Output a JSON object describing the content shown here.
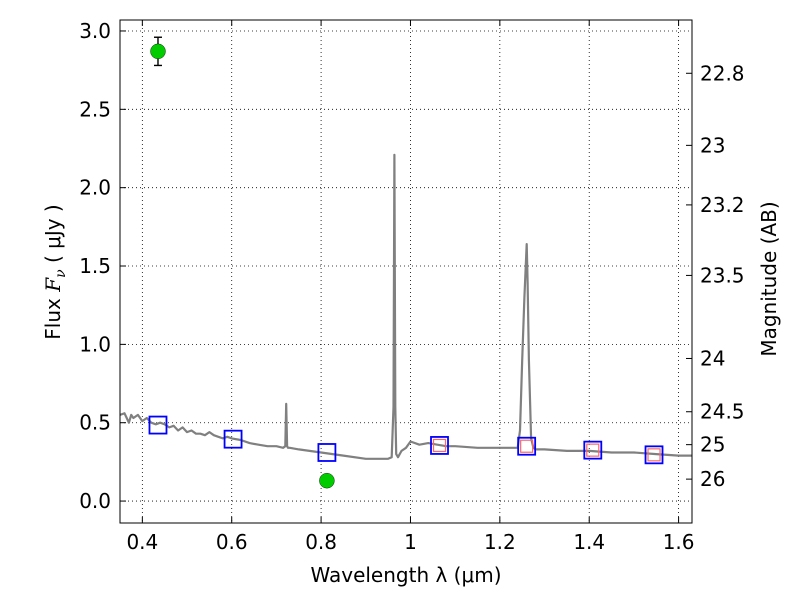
{
  "chart_data": {
    "type": "line",
    "xlabel": "Wavelength  λ (μm)",
    "ylabel": "Flux  F_ν  ( μJy )",
    "ylabel_parts": {
      "pre": "Flux  ",
      "f": "F",
      "nu": "ν",
      "post": "  ( μJy )"
    },
    "y2label": "Magnitude (AB)",
    "xlim": [
      0.35,
      1.63
    ],
    "ylim": [
      -0.14,
      3.07
    ],
    "grid": true,
    "x_ticks": [
      {
        "value": 0.4,
        "label": "0.4"
      },
      {
        "value": 0.6,
        "label": "0.6"
      },
      {
        "value": 0.8,
        "label": "0.8"
      },
      {
        "value": 1.0,
        "label": "1"
      },
      {
        "value": 1.2,
        "label": "1.2"
      },
      {
        "value": 1.4,
        "label": "1.4"
      },
      {
        "value": 1.6,
        "label": "1.6"
      }
    ],
    "y_ticks": [
      {
        "value": 0.0,
        "label": "0.0"
      },
      {
        "value": 0.5,
        "label": "0.5"
      },
      {
        "value": 1.0,
        "label": "1.0"
      },
      {
        "value": 1.5,
        "label": "1.5"
      },
      {
        "value": 2.0,
        "label": "2.0"
      },
      {
        "value": 2.5,
        "label": "2.5"
      },
      {
        "value": 3.0,
        "label": "3.0"
      }
    ],
    "y2_ticks": [
      {
        "flux": 2.73,
        "label": "22.8"
      },
      {
        "flux": 2.27,
        "label": "23"
      },
      {
        "flux": 1.89,
        "label": "23.2"
      },
      {
        "flux": 1.44,
        "label": "23.5"
      },
      {
        "flux": 0.91,
        "label": "24"
      },
      {
        "flux": 0.57,
        "label": "24.5"
      },
      {
        "flux": 0.36,
        "label": "25"
      },
      {
        "flux": 0.14,
        "label": "26"
      }
    ],
    "series": [
      {
        "type": "line",
        "color": "#808080",
        "x": [
          0.35,
          0.36,
          0.37,
          0.375,
          0.38,
          0.39,
          0.4,
          0.41,
          0.42,
          0.43,
          0.44,
          0.45,
          0.46,
          0.47,
          0.48,
          0.49,
          0.5,
          0.51,
          0.52,
          0.53,
          0.54,
          0.55,
          0.56,
          0.57,
          0.58,
          0.59,
          0.6,
          0.62,
          0.64,
          0.66,
          0.68,
          0.7,
          0.715,
          0.72,
          0.722,
          0.724,
          0.726,
          0.73,
          0.75,
          0.8,
          0.85,
          0.9,
          0.95,
          0.958,
          0.962,
          0.964,
          0.966,
          0.968,
          0.972,
          0.98,
          0.99,
          1.0,
          1.02,
          1.04,
          1.06,
          1.08,
          1.1,
          1.15,
          1.2,
          1.24,
          1.245,
          1.25,
          1.255,
          1.26,
          1.262,
          1.265,
          1.27,
          1.275,
          1.28,
          1.3,
          1.35,
          1.4,
          1.45,
          1.5,
          1.55,
          1.6,
          1.63
        ],
        "y": [
          0.55,
          0.56,
          0.5,
          0.55,
          0.53,
          0.55,
          0.51,
          0.53,
          0.5,
          0.49,
          0.5,
          0.49,
          0.47,
          0.48,
          0.45,
          0.47,
          0.44,
          0.45,
          0.43,
          0.43,
          0.42,
          0.44,
          0.42,
          0.41,
          0.4,
          0.41,
          0.4,
          0.39,
          0.37,
          0.36,
          0.35,
          0.35,
          0.34,
          0.35,
          0.62,
          0.35,
          0.34,
          0.34,
          0.33,
          0.31,
          0.29,
          0.27,
          0.27,
          0.28,
          0.6,
          2.21,
          0.6,
          0.3,
          0.28,
          0.32,
          0.34,
          0.38,
          0.36,
          0.37,
          0.36,
          0.35,
          0.35,
          0.34,
          0.34,
          0.34,
          0.45,
          0.9,
          1.3,
          1.64,
          1.4,
          0.9,
          0.4,
          0.34,
          0.33,
          0.33,
          0.32,
          0.32,
          0.31,
          0.31,
          0.3,
          0.29,
          0.29
        ]
      },
      {
        "type": "scatter",
        "marker": "square",
        "color": "#0000ff",
        "x": [
          0.435,
          0.603,
          0.813,
          1.065,
          1.26,
          1.408,
          1.545
        ],
        "y": [
          0.485,
          0.395,
          0.31,
          0.355,
          0.35,
          0.325,
          0.295
        ]
      },
      {
        "type": "scatter",
        "marker": "square",
        "color": "#ff6666",
        "x": [
          1.065,
          1.26,
          1.408,
          1.545
        ],
        "y": [
          0.355,
          0.35,
          0.325,
          0.295
        ]
      },
      {
        "type": "scatter",
        "marker": "circle",
        "color": "#00cc00",
        "errorbars": true,
        "x": [
          0.435,
          0.813
        ],
        "y": [
          2.87,
          0.13
        ],
        "yerr": [
          0.09,
          0.025
        ]
      }
    ]
  }
}
